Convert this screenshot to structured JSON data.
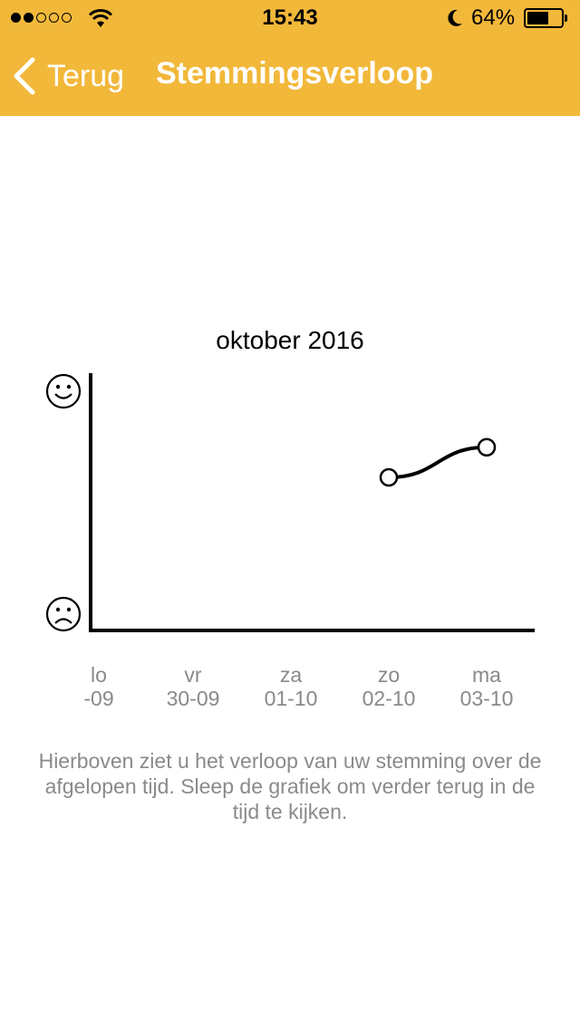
{
  "status_bar": {
    "time": "15:43",
    "battery_percent": "64%",
    "battery_level": 0.64,
    "signal_bars_filled": 2,
    "signal_bars_total": 5,
    "icons": [
      "signal-dots-icon",
      "wifi-icon",
      "moon-icon",
      "battery-icon"
    ]
  },
  "nav": {
    "back_label": "Terug",
    "title": "Stemmingsverloop",
    "bar_color": "#F2B83A"
  },
  "chart_data": {
    "type": "line",
    "title": "oktober 2016",
    "y_axis": {
      "top_icon": "smiley-face-icon",
      "bottom_icon": "sad-face-icon",
      "range": [
        0,
        1
      ]
    },
    "categories": [
      {
        "day": "lo",
        "date": "-09"
      },
      {
        "day": "vr",
        "date": "30-09"
      },
      {
        "day": "za",
        "date": "01-10"
      },
      {
        "day": "zo",
        "date": "02-10"
      },
      {
        "day": "ma",
        "date": "03-10"
      }
    ],
    "series": [
      {
        "points": [
          {
            "category": "02-10",
            "value": 0.66
          },
          {
            "category": "03-10",
            "value": 0.79
          }
        ]
      }
    ],
    "grid": false
  },
  "help_text": "Hierboven ziet u het verloop van uw stemming over de afgelopen tijd. Sleep de grafiek om verder terug in de tijd te kijken."
}
